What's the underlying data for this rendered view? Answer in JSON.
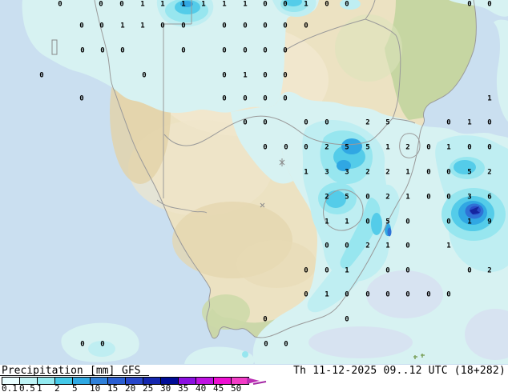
{
  "legend": {
    "title": "Precipitation",
    "units": "[mm]",
    "model": "GFS",
    "timestamp": "Th 11-12-2025 09..12 UTC (18+282)",
    "scale": {
      "labels": [
        "0.1",
        "0.5",
        "1",
        "2",
        "5",
        "10",
        "15",
        "20",
        "25",
        "30",
        "35",
        "40",
        "45",
        "50"
      ],
      "colors": [
        "#e9feff",
        "#bef3f5",
        "#93eaf0",
        "#44c9e8",
        "#2fa9e3",
        "#2f80d9",
        "#2a5ed1",
        "#2746c9",
        "#1527ae",
        "#000c96",
        "#8a10e0",
        "#bf12e2",
        "#ee10d2",
        "#f23cc6"
      ],
      "arrow_color": "#bb2eb4"
    }
  },
  "map": {
    "colors": {
      "ocean": "#cadff0",
      "land": "#ece2c2",
      "precip_levels": [
        "#d7f2f2",
        "#bfeef2",
        "#97e6ef",
        "#54cce9",
        "#30a7e3",
        "#2f72d6",
        "#2b4cc8",
        "#15269f"
      ]
    },
    "grid_values": [
      [
        75,
        4,
        "0"
      ],
      [
        126,
        4,
        "0"
      ],
      [
        152,
        4,
        "0"
      ],
      [
        178,
        4,
        "1"
      ],
      [
        203,
        4,
        "1"
      ],
      [
        229,
        4,
        "1"
      ],
      [
        254,
        4,
        "1"
      ],
      [
        280,
        4,
        "1"
      ],
      [
        306,
        4,
        "1"
      ],
      [
        331,
        4,
        "0"
      ],
      [
        356,
        4,
        "0"
      ],
      [
        382,
        4,
        "1"
      ],
      [
        408,
        4,
        "0"
      ],
      [
        433,
        4,
        "0"
      ],
      [
        586,
        4,
        "0"
      ],
      [
        611,
        4,
        "0"
      ],
      [
        102,
        31,
        "0"
      ],
      [
        127,
        31,
        "0"
      ],
      [
        153,
        31,
        "1"
      ],
      [
        178,
        31,
        "1"
      ],
      [
        203,
        31,
        "0"
      ],
      [
        229,
        31,
        "0"
      ],
      [
        280,
        31,
        "0"
      ],
      [
        306,
        31,
        "0"
      ],
      [
        331,
        31,
        "0"
      ],
      [
        356,
        31,
        "0"
      ],
      [
        382,
        31,
        "0"
      ],
      [
        103,
        62,
        "0"
      ],
      [
        128,
        62,
        "0"
      ],
      [
        153,
        62,
        "0"
      ],
      [
        229,
        62,
        "0"
      ],
      [
        280,
        62,
        "0"
      ],
      [
        306,
        62,
        "0"
      ],
      [
        331,
        62,
        "0"
      ],
      [
        356,
        62,
        "0"
      ],
      [
        52,
        93,
        "0"
      ],
      [
        180,
        93,
        "0"
      ],
      [
        280,
        93,
        "0"
      ],
      [
        306,
        93,
        "1"
      ],
      [
        331,
        93,
        "0"
      ],
      [
        356,
        93,
        "0"
      ],
      [
        102,
        122,
        "0"
      ],
      [
        280,
        122,
        "0"
      ],
      [
        306,
        122,
        "0"
      ],
      [
        331,
        122,
        "0"
      ],
      [
        356,
        122,
        "0"
      ],
      [
        611,
        122,
        "1"
      ],
      [
        306,
        152,
        "0"
      ],
      [
        331,
        152,
        "0"
      ],
      [
        382,
        152,
        "0"
      ],
      [
        408,
        152,
        "0"
      ],
      [
        459,
        152,
        "2"
      ],
      [
        484,
        152,
        "5"
      ],
      [
        560,
        152,
        "0"
      ],
      [
        586,
        152,
        "1"
      ],
      [
        611,
        152,
        "0"
      ],
      [
        331,
        183,
        "0"
      ],
      [
        357,
        183,
        "0"
      ],
      [
        382,
        183,
        "0"
      ],
      [
        408,
        183,
        "2"
      ],
      [
        433,
        183,
        "5"
      ],
      [
        459,
        183,
        "5"
      ],
      [
        484,
        183,
        "1"
      ],
      [
        509,
        183,
        "2"
      ],
      [
        535,
        183,
        "0"
      ],
      [
        560,
        183,
        "1"
      ],
      [
        586,
        183,
        "0"
      ],
      [
        611,
        183,
        "0"
      ],
      [
        382,
        214,
        "1"
      ],
      [
        408,
        214,
        "3"
      ],
      [
        433,
        214,
        "3"
      ],
      [
        459,
        214,
        "2"
      ],
      [
        484,
        214,
        "2"
      ],
      [
        509,
        214,
        "1"
      ],
      [
        535,
        214,
        "0"
      ],
      [
        560,
        214,
        "0"
      ],
      [
        586,
        214,
        "5"
      ],
      [
        611,
        214,
        "2"
      ],
      [
        408,
        245,
        "2"
      ],
      [
        433,
        245,
        "5"
      ],
      [
        459,
        245,
        "0"
      ],
      [
        484,
        245,
        "2"
      ],
      [
        509,
        245,
        "1"
      ],
      [
        535,
        245,
        "0"
      ],
      [
        560,
        245,
        "0"
      ],
      [
        586,
        245,
        "3"
      ],
      [
        611,
        245,
        "6"
      ],
      [
        408,
        276,
        "1"
      ],
      [
        433,
        276,
        "1"
      ],
      [
        459,
        276,
        "0"
      ],
      [
        484,
        276,
        "5"
      ],
      [
        509,
        276,
        "0"
      ],
      [
        560,
        276,
        "0"
      ],
      [
        586,
        276,
        "1"
      ],
      [
        611,
        276,
        "9"
      ],
      [
        408,
        306,
        "0"
      ],
      [
        433,
        306,
        "0"
      ],
      [
        459,
        306,
        "2"
      ],
      [
        484,
        306,
        "1"
      ],
      [
        509,
        306,
        "0"
      ],
      [
        560,
        306,
        "1"
      ],
      [
        382,
        337,
        "0"
      ],
      [
        408,
        337,
        "0"
      ],
      [
        433,
        337,
        "1"
      ],
      [
        484,
        337,
        "0"
      ],
      [
        509,
        337,
        "0"
      ],
      [
        586,
        337,
        "0"
      ],
      [
        611,
        337,
        "2"
      ],
      [
        382,
        367,
        "0"
      ],
      [
        408,
        367,
        "1"
      ],
      [
        433,
        367,
        "0"
      ],
      [
        459,
        367,
        "0"
      ],
      [
        484,
        367,
        "0"
      ],
      [
        509,
        367,
        "0"
      ],
      [
        535,
        367,
        "0"
      ],
      [
        560,
        367,
        "0"
      ],
      [
        331,
        398,
        "0"
      ],
      [
        433,
        398,
        "0"
      ],
      [
        103,
        429,
        "0"
      ],
      [
        128,
        429,
        "0"
      ],
      [
        332,
        429,
        "0"
      ],
      [
        357,
        429,
        "0"
      ]
    ]
  }
}
